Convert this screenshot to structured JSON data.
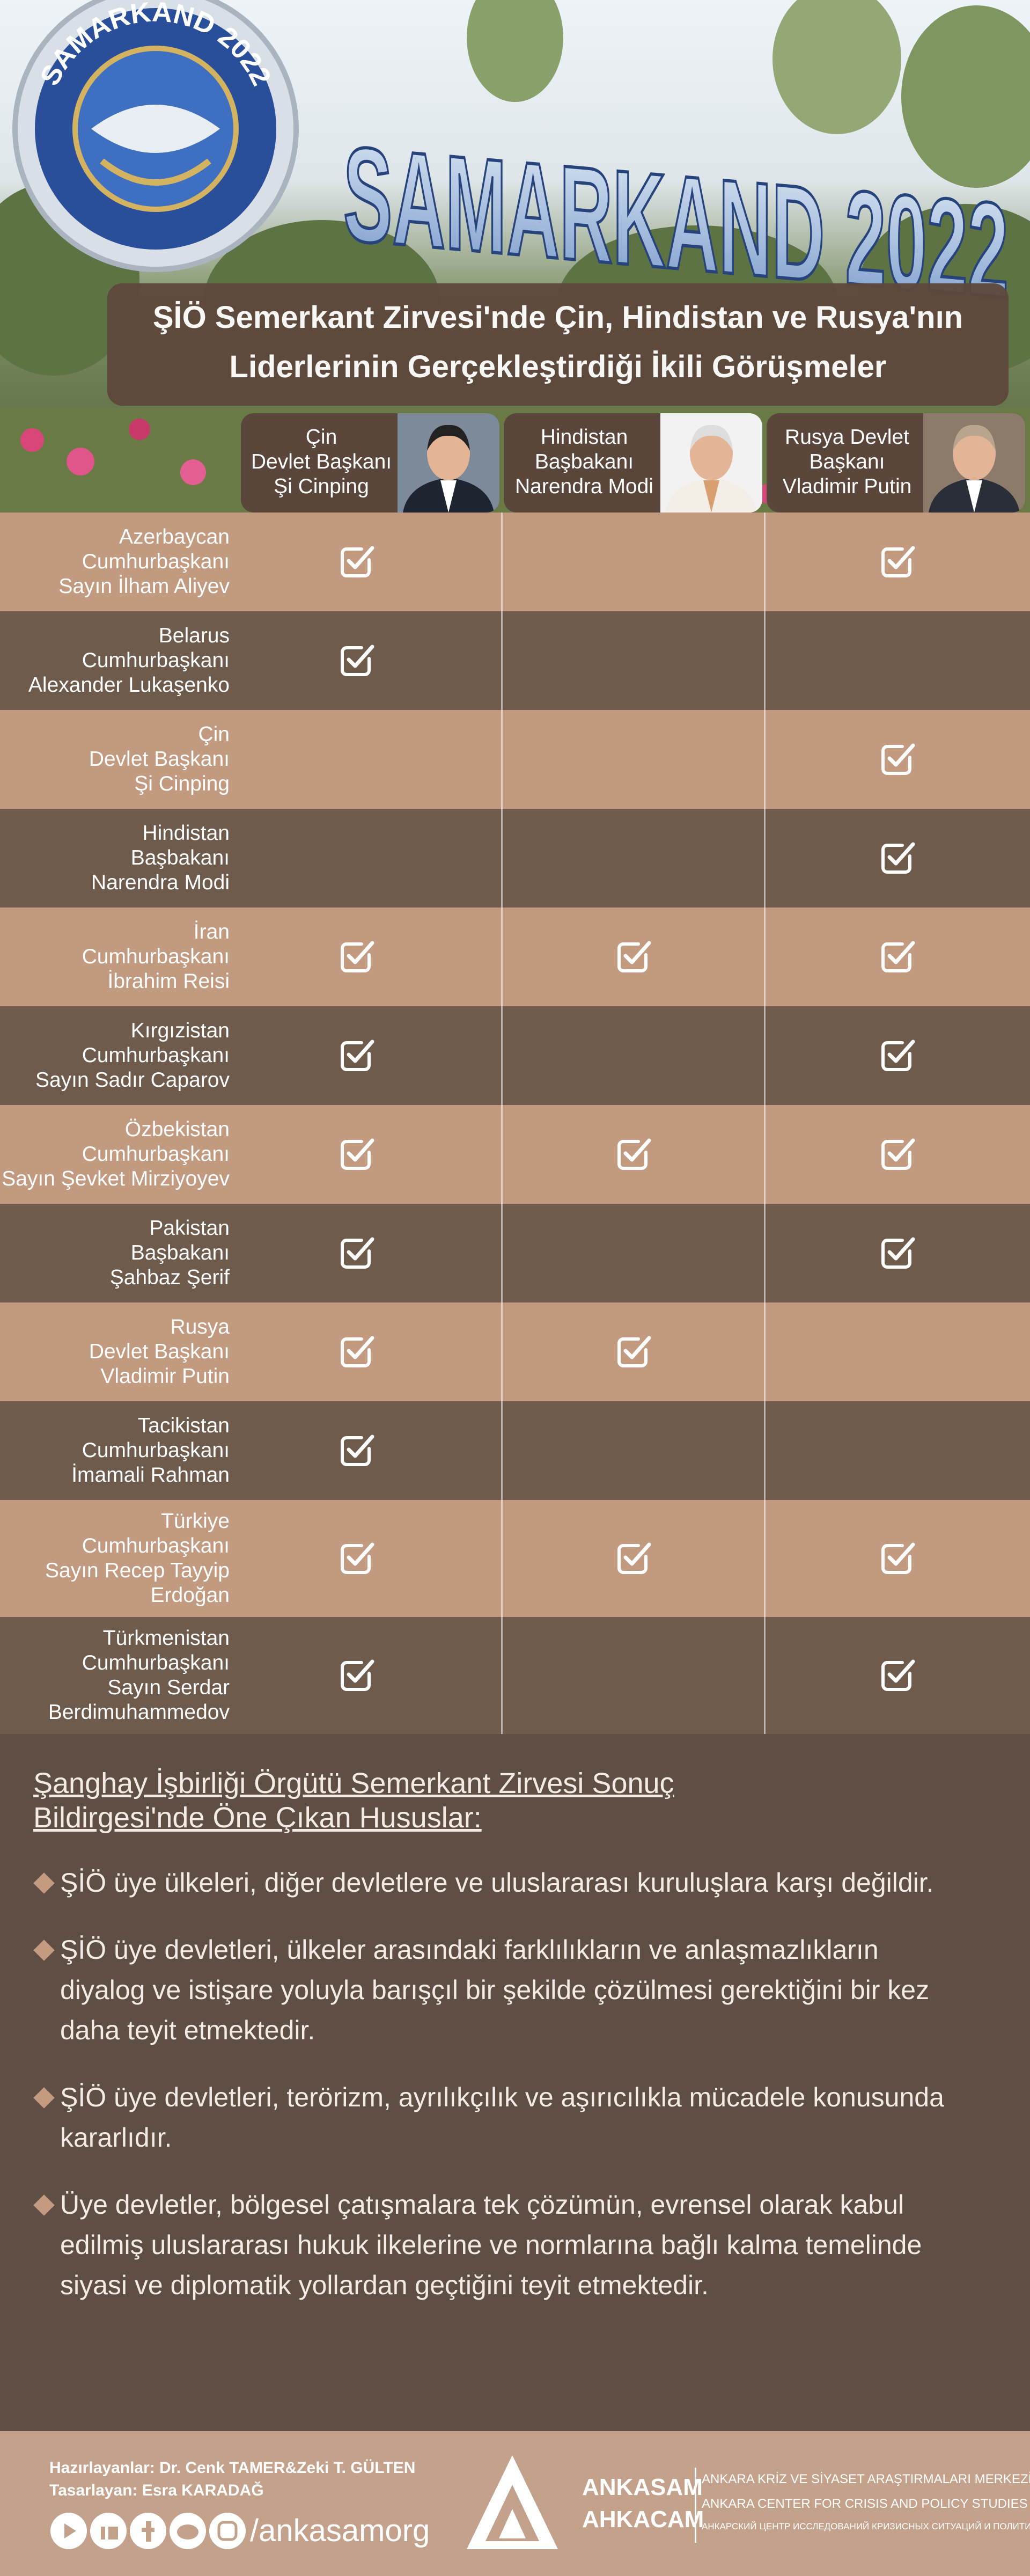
{
  "header": {
    "logo_text": "SAMARKAND 2022",
    "sign_text": "SAMARKAND 2022",
    "title_lines": [
      "ŞİÖ Semerkant Zirvesi'nde Çin, Hindistan ve Rusya'nın",
      "Liderlerinin Gerçekleştirdiği İkili Görüşmeler"
    ]
  },
  "table": {
    "columns": [
      {
        "lines": [
          "Çin",
          "Devlet Başkanı",
          "Şi Cinping"
        ]
      },
      {
        "lines": [
          "Hindistan",
          "Başbakanı",
          "Narendra Modi"
        ]
      },
      {
        "lines": [
          "Rusya Devlet",
          "Başkanı",
          "Vladimir Putin"
        ]
      }
    ],
    "rows": [
      {
        "lines": [
          "Azerbaycan",
          "Cumhurbaşkanı",
          "Sayın İlham Aliyev"
        ],
        "checks": [
          true,
          false,
          true
        ]
      },
      {
        "lines": [
          "Belarus",
          "Cumhurbaşkanı",
          "Alexander Lukaşenko"
        ],
        "checks": [
          true,
          false,
          false
        ]
      },
      {
        "lines": [
          "Çin",
          "Devlet Başkanı",
          "Şi Cinping"
        ],
        "checks": [
          false,
          false,
          true
        ]
      },
      {
        "lines": [
          "Hindistan",
          "Başbakanı",
          "Narendra Modi"
        ],
        "checks": [
          false,
          false,
          true
        ]
      },
      {
        "lines": [
          "İran",
          "Cumhurbaşkanı",
          "İbrahim Reisi"
        ],
        "checks": [
          true,
          true,
          true
        ]
      },
      {
        "lines": [
          "Kırgızistan",
          "Cumhurbaşkanı",
          "Sayın Sadır Caparov"
        ],
        "checks": [
          true,
          false,
          true
        ]
      },
      {
        "lines": [
          "Özbekistan",
          "Cumhurbaşkanı",
          "Sayın Şevket Mirziyoyev"
        ],
        "checks": [
          true,
          true,
          true
        ]
      },
      {
        "lines": [
          "Pakistan",
          "Başbakanı",
          "Şahbaz Şerif"
        ],
        "checks": [
          true,
          false,
          true
        ]
      },
      {
        "lines": [
          "Rusya",
          "Devlet Başkanı",
          "Vladimir Putin"
        ],
        "checks": [
          true,
          true,
          false
        ]
      },
      {
        "lines": [
          "Tacikistan",
          "Cumhurbaşkanı",
          "İmamali Rahman"
        ],
        "checks": [
          true,
          false,
          false
        ]
      },
      {
        "lines": [
          "Türkiye",
          "Cumhurbaşkanı",
          "Sayın Recep Tayyip",
          "Erdoğan"
        ],
        "checks": [
          true,
          true,
          true
        ]
      },
      {
        "lines": [
          "Türkmenistan",
          "Cumhurbaşkanı",
          "Sayın Serdar",
          "Berdimuhammedov"
        ],
        "checks": [
          true,
          false,
          true
        ]
      }
    ]
  },
  "summary": {
    "heading_lines": [
      "Şanghay İşbirliği Örgütü Semerkant Zirvesi Sonuç",
      "Bildirgesi'nde Öne Çıkan Hususlar:"
    ],
    "items": [
      "ŞİÖ üye ülkeleri, diğer devletlere ve uluslararası kuruluşlara karşı değildir.",
      "ŞİÖ üye devletleri, ülkeler arasındaki farklılıkların ve anlaşmazlıkların diyalog ve istişare yoluyla barışçıl bir şekilde çözülmesi gerektiğini bir kez daha teyit etmektedir.",
      "ŞİÖ üye devletleri, terörizm, ayrılıkçılık ve aşırıcılıkla mücadele konusunda kararlıdır.",
      "Üye devletler, bölgesel çatışmalara tek çözümün, evrensel olarak kabul edilmiş uluslararası hukuk ilkelerine ve normlarına bağlı kalma temelinde siyasi ve diplomatik yollardan geçtiğini teyit etmektedir."
    ]
  },
  "footer": {
    "prepared_by": "Hazırlayanlar: Dr. Cenk TAMER&Zeki T. GÜLTEN",
    "designed_by": "Tasarlayan: Esra KARADAĞ",
    "handle": "/ankasamorg",
    "brand": "ANKASAM",
    "brand_cyrillic": "AHKACAM",
    "org_lines": [
      "ANKARA KRİZ VE SİYASET ARAŞTIRMALARI MERKEZİ",
      "ANKARA CENTER FOR CRISIS AND POLICY STUDIES",
      "АНКАРСКИЙ ЦЕНТР ИССЛЕДОВАНИЙ КРИЗИСНЫХ СИТУАЦИЙ И ПОЛИТИКИ"
    ]
  }
}
